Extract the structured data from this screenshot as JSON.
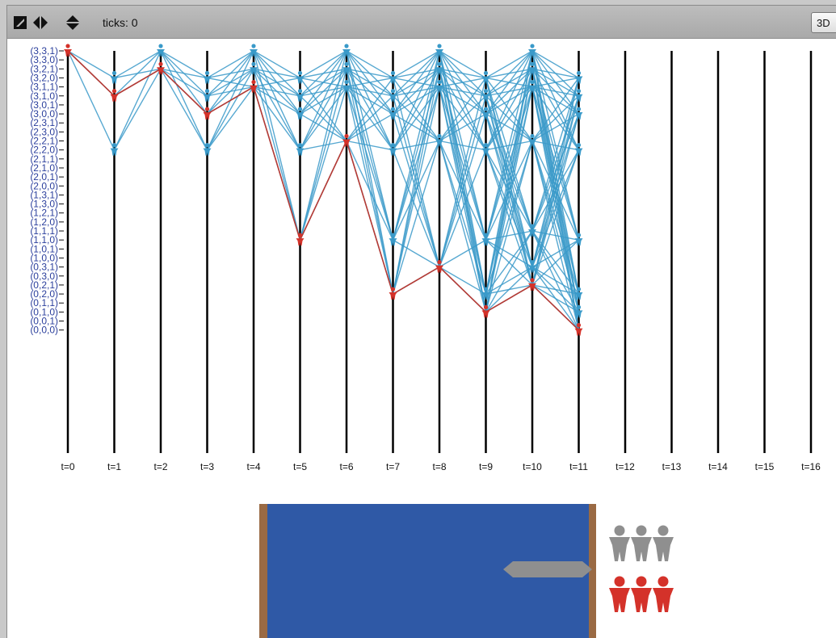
{
  "toolbar": {
    "ticks_label": "ticks: 0",
    "btn_3d": "3D",
    "icons": [
      "zoom-icon",
      "horizontal-resize-icon",
      "vertical-resize-icon"
    ]
  },
  "colors": {
    "explored": "#3a9ac9",
    "solution": "#d4322a",
    "river": "#2f59a6",
    "bank": "#9a6a44",
    "boat": "#8f8f8f",
    "missionaries": "#8f8f8f",
    "cannibals": "#d4322a",
    "axis_label": "#2b3f9c"
  },
  "chart_data": {
    "type": "line",
    "states": [
      "(0,0,0)",
      "(0,0,1)",
      "(0,1,0)",
      "(0,1,1)",
      "(0,2,0)",
      "(0,2,1)",
      "(0,3,0)",
      "(0,3,1)",
      "(1,0,0)",
      "(1,0,1)",
      "(1,1,0)",
      "(1,1,1)",
      "(1,2,0)",
      "(1,2,1)",
      "(1,3,0)",
      "(1,3,1)",
      "(2,0,0)",
      "(2,0,1)",
      "(2,1,0)",
      "(2,1,1)",
      "(2,2,0)",
      "(2,2,1)",
      "(2,3,0)",
      "(2,3,1)",
      "(3,0,0)",
      "(3,0,1)",
      "(3,1,0)",
      "(3,1,1)",
      "(3,2,0)",
      "(3,2,1)",
      "(3,3,0)",
      "(3,3,1)"
    ],
    "time_labels": [
      "t=0",
      "t=1",
      "t=2",
      "t=3",
      "t=4",
      "t=5",
      "t=6",
      "t=7",
      "t=8",
      "t=9",
      "t=10",
      "t=11",
      "t=12",
      "t=13",
      "t=14",
      "t=15",
      "t=16"
    ],
    "nodes": [
      {
        "t": 0,
        "states": [
          "(3,3,1)"
        ]
      },
      {
        "t": 1,
        "states": [
          "(3,2,0)",
          "(3,1,0)",
          "(2,2,0)"
        ]
      },
      {
        "t": 2,
        "states": [
          "(3,3,1)",
          "(3,2,1)"
        ]
      },
      {
        "t": 3,
        "states": [
          "(3,2,0)",
          "(3,1,0)",
          "(3,0,0)",
          "(2,2,0)"
        ]
      },
      {
        "t": 4,
        "states": [
          "(3,3,1)",
          "(3,2,1)",
          "(3,1,1)"
        ]
      },
      {
        "t": 5,
        "states": [
          "(3,2,0)",
          "(3,1,0)",
          "(3,0,0)",
          "(2,2,0)",
          "(1,1,0)"
        ]
      },
      {
        "t": 6,
        "states": [
          "(3,3,1)",
          "(3,2,1)",
          "(3,1,1)",
          "(2,2,1)"
        ]
      },
      {
        "t": 7,
        "states": [
          "(3,2,0)",
          "(3,1,0)",
          "(3,0,0)",
          "(2,2,0)",
          "(1,1,0)",
          "(0,2,0)"
        ]
      },
      {
        "t": 8,
        "states": [
          "(3,3,1)",
          "(3,2,1)",
          "(3,1,1)",
          "(2,2,1)",
          "(0,3,1)"
        ]
      },
      {
        "t": 9,
        "states": [
          "(3,2,0)",
          "(3,1,0)",
          "(3,0,0)",
          "(2,2,0)",
          "(1,1,0)",
          "(0,2,0)",
          "(0,1,0)"
        ]
      },
      {
        "t": 10,
        "states": [
          "(3,3,1)",
          "(3,2,1)",
          "(3,1,1)",
          "(2,2,1)",
          "(1,1,1)",
          "(0,3,1)",
          "(0,2,1)"
        ]
      },
      {
        "t": 11,
        "states": [
          "(3,2,0)",
          "(3,1,0)",
          "(3,0,0)",
          "(2,2,0)",
          "(1,1,0)",
          "(0,2,0)",
          "(0,1,0)",
          "(0,0,0)"
        ]
      }
    ],
    "solution_path": [
      "(3,3,1)",
      "(3,1,0)",
      "(3,2,1)",
      "(3,0,0)",
      "(3,1,1)",
      "(1,1,0)",
      "(2,2,1)",
      "(0,2,0)",
      "(0,3,1)",
      "(0,1,0)",
      "(0,2,1)",
      "(0,0,0)"
    ]
  }
}
